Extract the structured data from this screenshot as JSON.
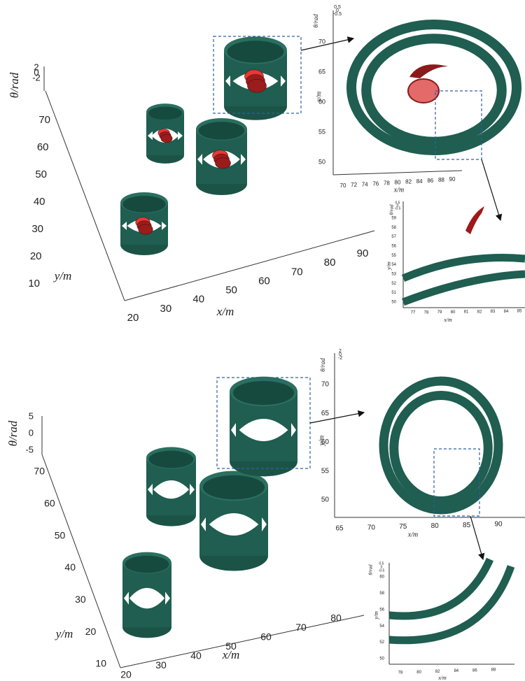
{
  "panels": [
    {
      "main": {
        "theta_label": "θ/rad",
        "theta_ticks": [
          2,
          0,
          -2
        ],
        "y_label": "y/m",
        "y_ticks": [
          70,
          60,
          50,
          40,
          30,
          20,
          10
        ],
        "x_label": "x/m",
        "x_ticks": [
          20,
          30,
          40,
          50,
          60,
          70,
          80,
          90
        ]
      },
      "inset": {
        "theta_label": "θ/rad",
        "theta_ticks": [
          0.5,
          0,
          -0.5
        ],
        "y_label": "y/m",
        "y_ticks": [
          70,
          65,
          60,
          55,
          50
        ],
        "x_label": "x/m",
        "x_ticks": [
          70,
          72,
          74,
          76,
          78,
          80,
          82,
          84,
          86,
          88,
          90
        ]
      },
      "zoom": {
        "theta_label": "θ/rad",
        "theta_ticks": [
          0.5,
          0,
          -0.5
        ],
        "y_label": "y/m",
        "y_ticks": [
          59,
          58,
          57,
          56,
          55,
          54,
          53,
          52,
          51,
          50
        ],
        "x_label": "x/m",
        "x_ticks": [
          77,
          78,
          79,
          80,
          81,
          82,
          83,
          84,
          85
        ]
      }
    },
    {
      "main": {
        "theta_label": "θ/rad",
        "theta_ticks": [
          5,
          0,
          -5
        ],
        "y_label": "y/m",
        "y_ticks": [
          70,
          60,
          50,
          40,
          30,
          20,
          10
        ],
        "x_label": "x/m",
        "x_ticks": [
          20,
          30,
          40,
          50,
          60,
          70,
          80
        ]
      },
      "inset": {
        "theta_label": "θ/rad",
        "theta_ticks": [
          2,
          0,
          -2
        ],
        "y_label": "y/m",
        "y_ticks": [
          70,
          65,
          60,
          55,
          50
        ],
        "x_label": "x/m",
        "x_ticks": [
          65,
          70,
          75,
          80,
          85,
          90
        ]
      },
      "zoom": {
        "theta_label": "θ/rad",
        "theta_ticks": [
          0.5,
          0,
          -0.5
        ],
        "y_label": "y/m",
        "y_ticks": [
          60,
          58,
          56,
          54,
          52,
          50
        ],
        "x_label": "x/m",
        "x_ticks": [
          78,
          80,
          82,
          84,
          86,
          88
        ]
      }
    }
  ]
}
